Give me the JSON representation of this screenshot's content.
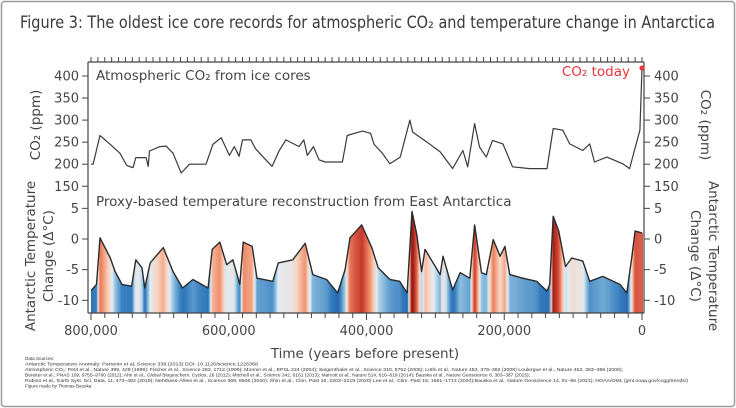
{
  "title": "Figure 3:  The oldest ice core records for atmospheric CO₂ and temperature change in Antarctica",
  "chart_data": [
    {
      "type": "line",
      "panel_label": "Atmospheric CO₂ from ice cores",
      "ylabel_left": "CO₂ (ppm)",
      "ylabel_right": "CO₂ (ppm)",
      "xlabel": "Time (years before present)",
      "x_unit": "years before present",
      "xlim": [
        800000,
        0
      ],
      "ylim": [
        150,
        420
      ],
      "yticks": [
        "400",
        "350",
        "300",
        "250",
        "200",
        "150"
      ],
      "ytick_values": [
        400,
        350,
        300,
        250,
        200,
        150
      ],
      "line_color": "#3a3a3a",
      "annotation": {
        "text": "CO₂ today",
        "x": 0,
        "y": 418,
        "color": "#e8343a"
      },
      "series": [
        {
          "x": [
            800000,
            797000,
            787000,
            772000,
            758000,
            748000,
            739000,
            735000,
            720000,
            717000,
            715000,
            700000,
            691000,
            681000,
            669000,
            657000,
            633000,
            623000,
            611000,
            599000,
            592000,
            585000,
            580000,
            568000,
            561000,
            551000,
            537000,
            527000,
            517000,
            498000,
            491000,
            486000,
            477000,
            469000,
            460000,
            435000,
            428000,
            406000,
            394000,
            389000,
            377000,
            366000,
            351000,
            337000,
            333000,
            312000,
            293000,
            275000,
            260000,
            253000,
            243000,
            236000,
            226000,
            217000,
            202000,
            188000,
            163000,
            138000,
            129000,
            115000,
            105000,
            86000,
            76000,
            69000,
            51000,
            28000,
            18000,
            11000,
            3000,
            0
          ],
          "y": [
            200,
            200,
            265,
            245,
            225,
            197,
            192,
            215,
            215,
            195,
            230,
            240,
            241,
            225,
            180,
            200,
            200,
            245,
            260,
            220,
            240,
            218,
            255,
            255,
            235,
            218,
            195,
            230,
            255,
            240,
            255,
            220,
            240,
            210,
            205,
            205,
            265,
            275,
            270,
            245,
            225,
            201,
            216,
            300,
            273,
            250,
            228,
            190,
            231,
            194,
            292,
            239,
            216,
            254,
            246,
            194,
            190,
            190,
            281,
            277,
            246,
            231,
            246,
            205,
            216,
            201,
            190,
            231,
            277,
            418
          ]
        }
      ]
    },
    {
      "type": "area",
      "panel_label": "Proxy-based temperature reconstruction from East Antarctica",
      "ylabel_left": [
        "Antarctic Temperature",
        "Change (Δ°C)"
      ],
      "ylabel_right": [
        "Antarctic Temperature",
        "Change (Δ°C)"
      ],
      "xlim": [
        800000,
        0
      ],
      "ylim": [
        -12,
        7
      ],
      "yticks": [
        "5",
        "0",
        "-5",
        "-10"
      ],
      "ytick_values": [
        5,
        0,
        -5,
        -10
      ],
      "xticks": [
        "800,000",
        "600,000",
        "400,000",
        "200,000",
        "0"
      ],
      "xtick_values": [
        800000,
        600000,
        400000,
        200000,
        0
      ],
      "colormap": {
        "cold": "#1c5ba6",
        "neutral": "#eef2f6",
        "warm": "#7e1515"
      },
      "series": [
        {
          "x": [
            800000,
            799000,
            792000,
            787000,
            772000,
            765000,
            755000,
            741000,
            735000,
            726000,
            722000,
            714000,
            695000,
            681000,
            667000,
            652000,
            630000,
            624000,
            613000,
            603000,
            594000,
            584000,
            579000,
            566000,
            559000,
            536000,
            528000,
            507000,
            489000,
            478000,
            458000,
            442000,
            431000,
            424000,
            407000,
            392000,
            383000,
            366000,
            352000,
            341000,
            334000,
            327000,
            320000,
            315000,
            293000,
            289000,
            275000,
            264000,
            250000,
            243000,
            233000,
            226000,
            216000,
            206000,
            199000,
            192000,
            173000,
            153000,
            138000,
            134000,
            129000,
            121000,
            111000,
            102000,
            86000,
            76000,
            57000,
            32000,
            22000,
            15000,
            10000,
            0
          ],
          "y": [
            -8.3,
            -8.3,
            -7.4,
            0.2,
            -3.1,
            -5.3,
            -7.4,
            -7.7,
            -3.4,
            -4.7,
            -8.0,
            -3.9,
            -1.4,
            -5.3,
            -8.0,
            -6.6,
            -8.0,
            -1.7,
            -0.5,
            -4.2,
            -3.4,
            -7.4,
            -0.5,
            -1.2,
            -6.4,
            -6.9,
            -3.9,
            -3.4,
            -0.7,
            -5.8,
            -6.6,
            -8.8,
            -5.0,
            0.2,
            2.3,
            -1.5,
            -4.7,
            -6.6,
            -6.9,
            -8.8,
            4.5,
            0.7,
            -5.3,
            -1.7,
            -5.8,
            -2.8,
            -8.3,
            -5.5,
            -6.4,
            2.3,
            -5.5,
            -5.8,
            -0.1,
            -2.8,
            -1.2,
            -5.8,
            -6.4,
            -6.9,
            -8.5,
            -7.4,
            3.7,
            1.3,
            -4.5,
            -3.1,
            -3.6,
            -6.9,
            -6.1,
            -7.4,
            -8.8,
            -3.1,
            1.3,
            1.0
          ]
        }
      ]
    }
  ],
  "sources": {
    "heading": "Data Sources:",
    "lines": [
      "Antarctic Temperature Anomaly: Parrenin et al, Science 339 (2013) DOI: 10.1126/science.1226368",
      "Atmospheric CO₂:  Petit et al., Nature 399, 429 (1999); Fischer et al., Science 283, 1712 (1999); Monnin et al., EPSL 224 (2004); Siegenthaler et al., Science 310, 5752 (2005); Lüthi et al., Nature 453, 379–382 (2008) Loulergue et al., Nature 453, 383–386 (2008);",
      "Bereiter et al., PNAS 109, 9755–9760 (2012); Ahn et al., Global Biogeochem. Cycles, 26  (2012); Mitchell et al., Science 342, 6161 (2013); Marcott et al., Nature 514, 616–619 (2014);  Bauska et al., Nature Geoscience 8, 383–387 (2015);",
      "Rubino et al., Earth Syst. Sci. Data, 11, 473–492 (2019); Nehrbass-Ahles et al., Science 369, 6506 (2020); Shin et al., Clim. Past 16, 2203–2219 (2020) Lee et al., Clim. Past 16, 1691–1713 (2020);Bauska et al., Nature Geoscience 14, 91–96 (2021); NOAA/GML (gml.noaa.gov/ccgg/trends/)"
    ],
    "credit": "Figure made by Thomas Bauska"
  }
}
